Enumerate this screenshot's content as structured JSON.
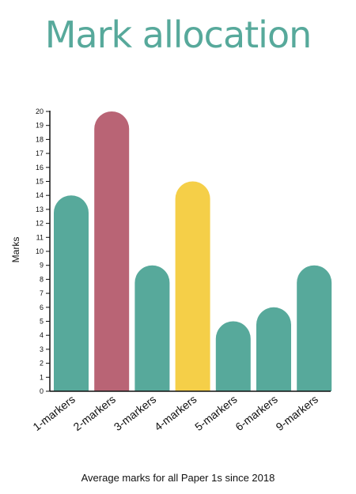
{
  "chart_data": {
    "type": "bar",
    "title": "Mark allocation",
    "ylabel": "Marks",
    "xlabel": "",
    "caption": "Average marks for all Paper 1s since 2018",
    "categories": [
      "1-markers",
      "2-markers",
      "3-markers",
      "4-markers",
      "5-markers",
      "6-markers",
      "9-markers"
    ],
    "values": [
      14,
      20,
      9,
      15,
      5,
      6,
      9
    ],
    "colors": [
      "#57a99b",
      "#b96475",
      "#57a99b",
      "#f5cf48",
      "#57a99b",
      "#57a99b",
      "#57a99b"
    ],
    "ylim": [
      0,
      20
    ],
    "yticks": [
      0,
      1,
      2,
      3,
      4,
      5,
      6,
      7,
      8,
      9,
      10,
      11,
      12,
      13,
      14,
      15,
      16,
      17,
      18,
      19,
      20
    ],
    "grid": false,
    "legend": "none"
  },
  "theme": {
    "title_color": "#57a99b"
  }
}
